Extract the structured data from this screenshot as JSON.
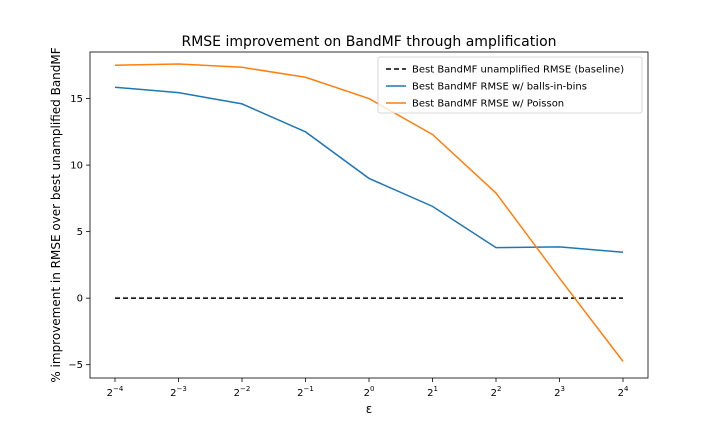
{
  "chart_data": {
    "type": "line",
    "title": "RMSE improvement on BandMF through amplification",
    "xlabel": "ε",
    "ylabel": "% improvement in RMSE over best unamplified BandMF",
    "x_scale": "log2",
    "x_tick_exponents": [
      "−4",
      "−3",
      "−2",
      "−1",
      "0",
      "1",
      "2",
      "3",
      "4"
    ],
    "x_tick_base": "2",
    "x": [
      0.0625,
      0.125,
      0.25,
      0.5,
      1,
      2,
      4,
      8,
      16
    ],
    "xlim": [
      0.0625,
      16
    ],
    "ylim": [
      -6,
      18.5
    ],
    "y_ticks": [
      -5,
      0,
      5,
      10,
      15
    ],
    "y_tick_labels": [
      "−5",
      "0",
      "5",
      "10",
      "15"
    ],
    "grid": false,
    "legend_position": "top-right",
    "series": [
      {
        "name": "Best BandMF unamplified RMSE (baseline)",
        "color": "#000000",
        "dashed": true,
        "values": [
          0,
          0,
          0,
          0,
          0,
          0,
          0,
          0,
          0
        ]
      },
      {
        "name": "Best BandMF RMSE w/ balls-in-bins",
        "color": "#1f77b4",
        "dashed": false,
        "values": [
          15.85,
          15.45,
          14.6,
          12.5,
          9.0,
          6.9,
          3.8,
          3.85,
          3.45
        ]
      },
      {
        "name": "Best BandMF RMSE w/ Poisson",
        "color": "#ff7f0e",
        "dashed": false,
        "values": [
          17.5,
          17.6,
          17.35,
          16.6,
          15.0,
          12.3,
          7.9,
          1.5,
          -4.75
        ]
      }
    ]
  }
}
